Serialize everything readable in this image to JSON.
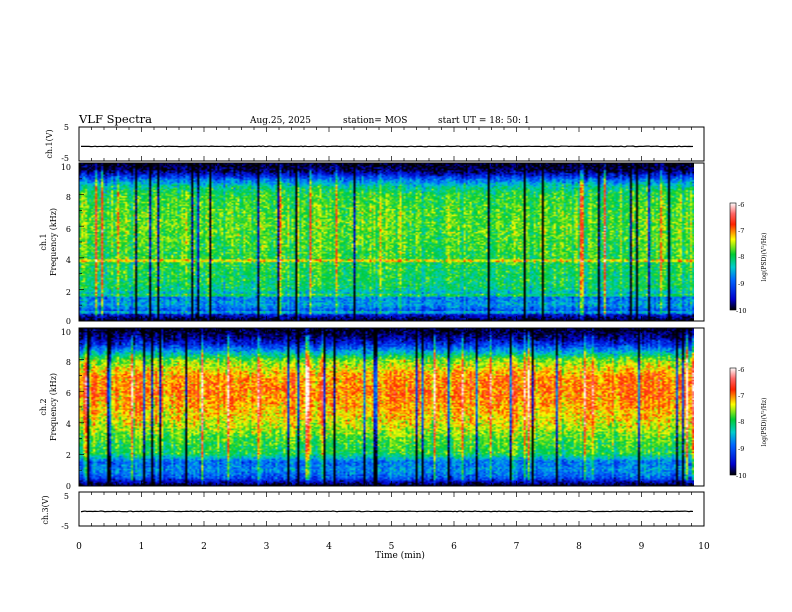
{
  "header": {
    "title": "VLF Spectra",
    "date": "Aug.25, 2025",
    "station": "station= MOS",
    "start": "start  UT  =   18: 50: 1"
  },
  "chart_data": [
    {
      "type": "line",
      "ylabel": "ch.1(V)",
      "ylim": [
        -5,
        5
      ],
      "y_ticks": [
        "5",
        "-5"
      ],
      "y_value": -0.7,
      "xlim": [
        0,
        10
      ]
    },
    {
      "type": "heatmap",
      "ylabel_line1": "ch.1",
      "ylabel_line2": "Frequency (kHz)",
      "ylim": [
        0,
        10
      ],
      "y_ticks": [
        "0",
        "2",
        "4",
        "6",
        "8",
        "10"
      ],
      "xlim": [
        0,
        10
      ],
      "data_end_min": 9.83,
      "colorbar": {
        "label": "log(PSD)(V²/Hz)",
        "range": [
          -10,
          -6
        ],
        "ticks": [
          "-6",
          "-7",
          "-8",
          "-9",
          "-10"
        ]
      },
      "profile": {
        "freq_khz": [
          0,
          0.5,
          1,
          1.5,
          2,
          3,
          4,
          5,
          6,
          7,
          8,
          8.5,
          9,
          9.5,
          10
        ],
        "median_log_psd": [
          -10,
          -9.2,
          -8.6,
          -8.8,
          -8.1,
          -8.0,
          -7.9,
          -7.8,
          -7.75,
          -7.8,
          -7.9,
          -8.2,
          -8.9,
          -9.8,
          -10
        ]
      },
      "horizontal_lines_khz": [
        0.5,
        1.6,
        3.8
      ]
    },
    {
      "type": "heatmap",
      "ylabel_line1": "ch.2",
      "ylabel_line2": "Frequency (kHz)",
      "ylim": [
        0,
        10
      ],
      "y_ticks": [
        "0",
        "2",
        "4",
        "6",
        "8",
        "10"
      ],
      "xlim": [
        0,
        10
      ],
      "data_end_min": 9.83,
      "colorbar": {
        "label": "log(PSD)(V²/Hz)",
        "range": [
          -10,
          -6
        ],
        "ticks": [
          "-6",
          "-7",
          "-8",
          "-9",
          "-10"
        ]
      },
      "profile": {
        "freq_khz": [
          0,
          0.5,
          1,
          1.5,
          2,
          3,
          4,
          5,
          6,
          7,
          8,
          8.5,
          9,
          9.5,
          10
        ],
        "median_log_psd": [
          -10,
          -9.0,
          -8.7,
          -8.9,
          -8.0,
          -7.8,
          -7.4,
          -7.15,
          -7.0,
          -7.1,
          -7.7,
          -8.5,
          -9.3,
          -9.8,
          -10
        ]
      },
      "horizontal_lines_khz": []
    },
    {
      "type": "line",
      "ylabel": "ch.3(V)",
      "ylim": [
        -5,
        5
      ],
      "y_ticks": [
        "5",
        "-5"
      ],
      "y_value": -0.7,
      "xlim": [
        0,
        10
      ]
    }
  ],
  "xaxis": {
    "label": "Time (min)",
    "ticks": [
      "0",
      "1",
      "2",
      "3",
      "4",
      "5",
      "6",
      "7",
      "8",
      "9",
      "10"
    ]
  }
}
